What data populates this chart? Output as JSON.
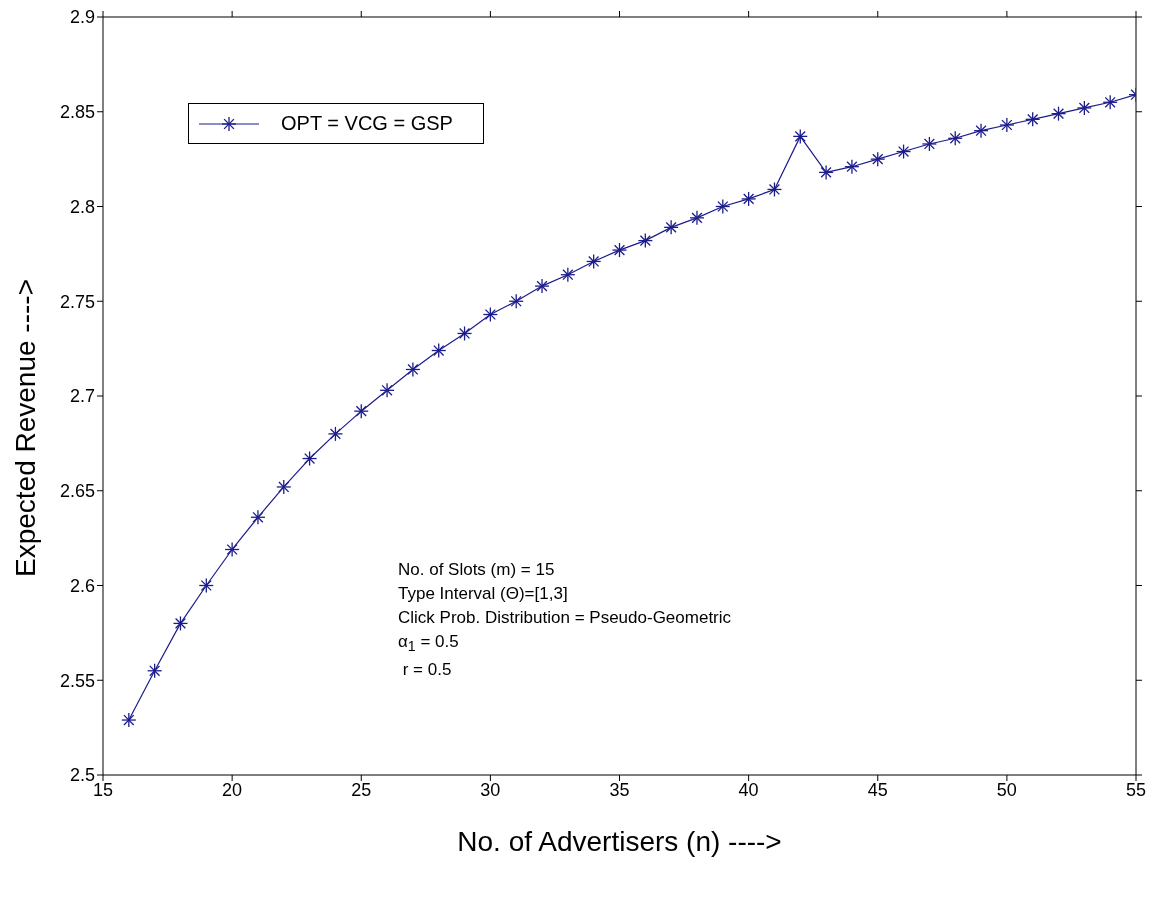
{
  "chart_data": {
    "type": "line",
    "xlabel": "No. of Advertisers (n) ---->",
    "ylabel": "Expected Revenue ---->",
    "x": [
      16,
      17,
      18,
      19,
      20,
      21,
      22,
      23,
      24,
      25,
      26,
      27,
      28,
      29,
      30,
      31,
      32,
      33,
      34,
      35,
      36,
      37,
      38,
      39,
      40,
      41,
      42,
      43,
      44,
      45,
      46,
      47,
      48,
      49,
      50,
      51,
      52,
      53,
      54,
      55
    ],
    "series": [
      {
        "name": "OPT = VCG = GSP",
        "color": "#1c1c8c",
        "values": [
          2.529,
          2.555,
          2.58,
          2.6,
          2.619,
          2.636,
          2.652,
          2.667,
          2.68,
          2.692,
          2.703,
          2.714,
          2.724,
          2.733,
          2.743,
          2.75,
          2.758,
          2.764,
          2.771,
          2.777,
          2.782,
          2.789,
          2.794,
          2.8,
          2.804,
          2.809,
          2.837,
          2.818,
          2.821,
          2.825,
          2.829,
          2.833,
          2.836,
          2.84,
          2.843,
          2.846,
          2.849,
          2.852,
          2.855,
          2.859
        ]
      }
    ],
    "xlim": [
      15,
      55
    ],
    "xticks": [
      15,
      20,
      25,
      30,
      35,
      40,
      45,
      50,
      55
    ],
    "ylim": [
      2.5,
      2.9
    ],
    "yticks": [
      2.5,
      2.55,
      2.6,
      2.65,
      2.7,
      2.75,
      2.8,
      2.85,
      2.9
    ],
    "marker": "cross",
    "line_style": "solid",
    "grid": false,
    "legend": "top left",
    "annotations": [
      "No. of Slots (m) = 15",
      "Type Interval (Θ)=[1,3]",
      "Click Prob. Distribution = Pseudo-Geometric",
      "α$_{1}$ = 0.5",
      " r = 0.5"
    ]
  }
}
